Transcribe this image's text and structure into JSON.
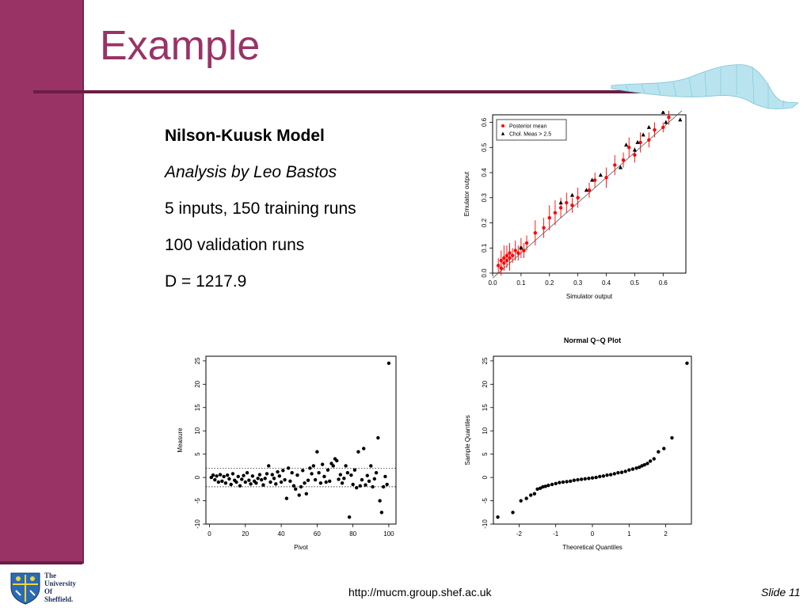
{
  "slide": {
    "title": "Example",
    "bullets": [
      "Nilson-Kuusk Model",
      "Analysis by Leo Bastos",
      "5 inputs, 150 training runs",
      "100 validation runs",
      "D = 1217.9"
    ],
    "footer_url": "http://mucm.group.shef.ac.uk",
    "slide_number": "Slide 11",
    "logo_lines": [
      "The",
      "University",
      "Of",
      "Sheffield."
    ],
    "colors": {
      "accent": "#993366",
      "rule": "#6b1d44",
      "wave": "#9fd8e6"
    }
  },
  "chart_data": [
    {
      "type": "scatter",
      "id": "emulator-vs-simulator",
      "title": "",
      "xlabel": "Simulator output",
      "ylabel": "Emulator output",
      "xlim": [
        0.0,
        0.68
      ],
      "ylim": [
        0.0,
        0.63
      ],
      "xticks": [
        "0.0",
        "0.1",
        "0.2",
        "0.3",
        "0.4",
        "0.5",
        "0.6"
      ],
      "yticks": [
        "0.0",
        "0.1",
        "0.2",
        "0.3",
        "0.4",
        "0.5",
        "0.6"
      ],
      "legend": {
        "placement": "top-left",
        "entries": [
          "Posterior mean",
          "Chol. Meas > 2.5"
        ]
      },
      "series": [
        {
          "name": "Posterior mean",
          "color": "#ff0000",
          "x": [
            0.02,
            0.03,
            0.03,
            0.04,
            0.04,
            0.05,
            0.05,
            0.06,
            0.06,
            0.07,
            0.08,
            0.09,
            0.1,
            0.11,
            0.12,
            0.15,
            0.18,
            0.2,
            0.22,
            0.24,
            0.26,
            0.28,
            0.3,
            0.34,
            0.36,
            0.4,
            0.43,
            0.46,
            0.48,
            0.5,
            0.52,
            0.55,
            0.57,
            0.6,
            0.62
          ],
          "y": [
            0.03,
            0.05,
            0.02,
            0.06,
            0.04,
            0.07,
            0.05,
            0.06,
            0.08,
            0.07,
            0.09,
            0.08,
            0.1,
            0.09,
            0.12,
            0.16,
            0.18,
            0.22,
            0.24,
            0.26,
            0.28,
            0.27,
            0.3,
            0.33,
            0.37,
            0.38,
            0.43,
            0.45,
            0.5,
            0.47,
            0.52,
            0.53,
            0.57,
            0.58,
            0.62
          ],
          "err": [
            0.03,
            0.04,
            0.03,
            0.05,
            0.03,
            0.04,
            0.03,
            0.05,
            0.04,
            0.03,
            0.04,
            0.03,
            0.04,
            0.03,
            0.03,
            0.05,
            0.04,
            0.05,
            0.05,
            0.04,
            0.04,
            0.03,
            0.04,
            0.03,
            0.03,
            0.04,
            0.04,
            0.03,
            0.04,
            0.03,
            0.04,
            0.03,
            0.03,
            0.02,
            0.03
          ]
        },
        {
          "name": "Chol. Meas > 2.5",
          "color": "#000000",
          "x": [
            0.1,
            0.24,
            0.28,
            0.33,
            0.35,
            0.38,
            0.45,
            0.47,
            0.5,
            0.51,
            0.53,
            0.55,
            0.6,
            0.61,
            0.66
          ],
          "y": [
            0.1,
            0.28,
            0.31,
            0.33,
            0.37,
            0.39,
            0.42,
            0.51,
            0.49,
            0.52,
            0.55,
            0.58,
            0.64,
            0.6,
            0.61
          ],
          "err": [
            0,
            0,
            0,
            0,
            0,
            0,
            0,
            0,
            0,
            0,
            0,
            0,
            0,
            0,
            0
          ]
        }
      ]
    },
    {
      "type": "scatter",
      "id": "measure-vs-pivot",
      "title": "",
      "xlabel": "Pivot",
      "ylabel": "Measure",
      "xlim": [
        -2,
        104
      ],
      "ylim": [
        -10,
        26
      ],
      "xticks": [
        "0",
        "20",
        "40",
        "60",
        "80",
        "100"
      ],
      "yticks": [
        "-10",
        "-5",
        "0",
        "5",
        "10",
        "15",
        "20",
        "25"
      ],
      "reference_lines": [
        -2,
        2
      ],
      "series": [
        {
          "name": "",
          "color": "#000000",
          "x": [
            1,
            2,
            3,
            4,
            5,
            6,
            7,
            8,
            9,
            10,
            11,
            12,
            13,
            14,
            15,
            16,
            17,
            18,
            19,
            20,
            21,
            22,
            23,
            24,
            25,
            26,
            27,
            28,
            29,
            30,
            31,
            32,
            33,
            34,
            35,
            36,
            37,
            38,
            39,
            40,
            41,
            42,
            43,
            44,
            45,
            46,
            47,
            48,
            49,
            50,
            51,
            52,
            53,
            54,
            55,
            56,
            57,
            58,
            59,
            60,
            61,
            62,
            63,
            64,
            65,
            66,
            67,
            68,
            69,
            70,
            71,
            72,
            73,
            74,
            75,
            76,
            77,
            78,
            79,
            80,
            81,
            82,
            83,
            84,
            85,
            86,
            87,
            88,
            89,
            90,
            91,
            92,
            93,
            94,
            95,
            96,
            97,
            98,
            99,
            100
          ],
          "y": [
            0,
            0.5,
            -0.5,
            0.3,
            -1,
            0.6,
            -0.8,
            0.2,
            -1.2,
            0.5,
            -0.3,
            -1.5,
            0.8,
            -0.6,
            -1,
            0.2,
            -1.8,
            -0.4,
            0.4,
            -1,
            1,
            -0.6,
            -1.4,
            0.3,
            -0.8,
            -1.2,
            -0.2,
            0.6,
            -0.5,
            -1.6,
            -0.2,
            0.8,
            2.5,
            -1,
            0.6,
            -0.2,
            -1.4,
            1.2,
            0.3,
            -1,
            1.5,
            -0.5,
            -4.5,
            2,
            -0.8,
            1,
            -1.8,
            -2.5,
            0.5,
            -3.8,
            -2,
            1.5,
            -1.2,
            -3.5,
            -0.6,
            2,
            0.8,
            2.5,
            -0.5,
            5.5,
            1,
            -1.2,
            2.8,
            0.2,
            -1,
            1.6,
            -0.8,
            3,
            2.5,
            4,
            3.6,
            -0.4,
            0.6,
            -1.2,
            -0.2,
            2.5,
            1,
            -8.5,
            0.5,
            -1.5,
            1.6,
            -2.2,
            5.5,
            -1.8,
            -0.5,
            6.2,
            -1.6,
            0.4,
            -0.8,
            2.5,
            -2,
            -0.3,
            1,
            8.5,
            -5,
            -7.5,
            -2,
            0.2,
            -1.5,
            24.5
          ]
        }
      ]
    },
    {
      "type": "scatter",
      "id": "normal-qq-plot",
      "title": "Normal Q−Q Plot",
      "xlabel": "Theoretical Quantiles",
      "ylabel": "Sample Quantiles",
      "xlim": [
        -2.7,
        2.7
      ],
      "ylim": [
        -10,
        26
      ],
      "xticks": [
        "-2",
        "-1",
        "0",
        "1",
        "2"
      ],
      "yticks": [
        "-10",
        "-5",
        "0",
        "5",
        "10",
        "15",
        "20",
        "25"
      ],
      "series": [
        {
          "name": "",
          "color": "#000000",
          "x": [
            -2.58,
            -2.17,
            -1.95,
            -1.8,
            -1.68,
            -1.58,
            -1.5,
            -1.42,
            -1.35,
            -1.28,
            -1.2,
            -1.1,
            -1,
            -0.9,
            -0.8,
            -0.7,
            -0.6,
            -0.5,
            -0.4,
            -0.3,
            -0.2,
            -0.1,
            0,
            0.1,
            0.2,
            0.3,
            0.4,
            0.5,
            0.6,
            0.7,
            0.8,
            0.9,
            1,
            1.1,
            1.2,
            1.28,
            1.35,
            1.42,
            1.5,
            1.58,
            1.68,
            1.8,
            1.95,
            2.17,
            2.58
          ],
          "y": [
            -8.5,
            -7.5,
            -5,
            -4.5,
            -3.8,
            -3.5,
            -2.5,
            -2.3,
            -2,
            -1.9,
            -1.7,
            -1.5,
            -1.3,
            -1.1,
            -1,
            -0.9,
            -0.8,
            -0.6,
            -0.5,
            -0.4,
            -0.3,
            -0.2,
            -0.1,
            0,
            0.2,
            0.3,
            0.5,
            0.6,
            0.8,
            1,
            1.1,
            1.3,
            1.6,
            1.8,
            2,
            2.2,
            2.5,
            2.7,
            3,
            3.5,
            4,
            5.5,
            6.2,
            8.5,
            24.5
          ]
        }
      ]
    }
  ]
}
